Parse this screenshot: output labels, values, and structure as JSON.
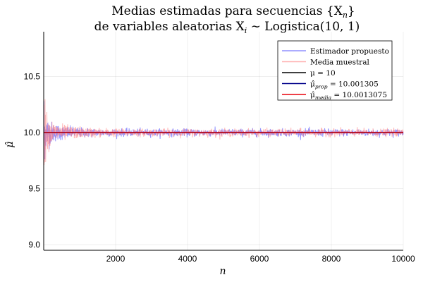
{
  "chart_data": {
    "type": "line",
    "title_line1": "Medias estimadas para secuencias {X",
    "title_line1_sub": "n",
    "title_line1_end": "}",
    "title_line2": "de variables aleatorias X",
    "title_line2_sub": "i",
    "title_line2_end": " ∼ Logistica(10, 1)",
    "xlabel": "n",
    "ylabel": "μ̂",
    "xlim": [
      1,
      10000
    ],
    "ylim": [
      8.95,
      10.9
    ],
    "xticks": [
      2000,
      4000,
      6000,
      8000,
      10000
    ],
    "xtick_labels": [
      "2000",
      "4000",
      "6000",
      "8000",
      "10000"
    ],
    "yticks": [
      9.0,
      9.5,
      10.0,
      10.5
    ],
    "ytick_labels": [
      "9.0",
      "9.5",
      "10.0",
      "10.5"
    ],
    "grid": true,
    "legend_position": "top-right",
    "series": [
      {
        "name": "Estimador propuesto",
        "color": "#6b6bff",
        "alpha": 0.75,
        "kind": "noisy",
        "amp0": 0.75,
        "amp_floor": 0.03
      },
      {
        "name": "Media muestral",
        "color": "#ff7f7f",
        "alpha": 0.6,
        "kind": "noisy",
        "amp0": 0.85,
        "amp_floor": 0.03
      },
      {
        "name": "μ = 10",
        "color": "#000000",
        "kind": "hline",
        "value": 10
      },
      {
        "name_main": "μ̂",
        "name_sub": "prop",
        "name_value": " = 10.001305",
        "color": "#00008b",
        "kind": "hline",
        "value": 10.001305
      },
      {
        "name_main": "μ̂",
        "name_sub": "media",
        "name_value": " = 10.0013075",
        "color": "#e8000b",
        "kind": "hline",
        "value": 10.0013075
      }
    ]
  }
}
